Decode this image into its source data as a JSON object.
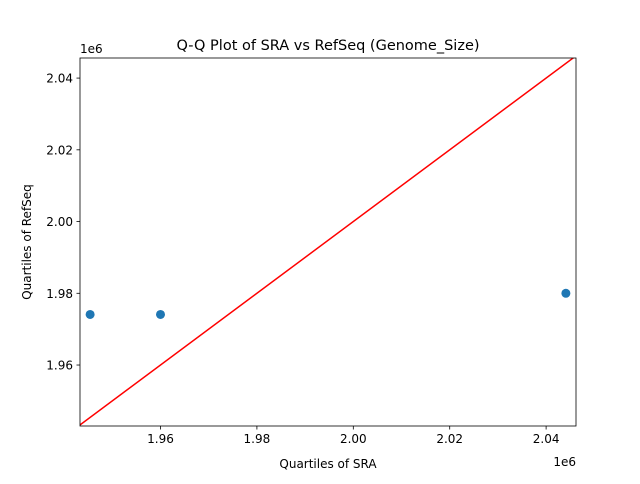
{
  "chart_data": {
    "type": "scatter",
    "title": "Q-Q Plot of SRA vs RefSeq (Genome_Size)",
    "xlabel": "Quartiles of SRA",
    "ylabel": "Quartiles of RefSeq",
    "x_offset_label": "1e6",
    "y_offset_label": "1e6",
    "xlim": [
      1.9433,
      2.0462
    ],
    "ylim": [
      1.943,
      2.0456
    ],
    "xticks": [
      1.96,
      1.98,
      2.0,
      2.02,
      2.04
    ],
    "yticks": [
      1.96,
      1.98,
      2.0,
      2.02,
      2.04
    ],
    "xtick_labels": [
      "1.96",
      "1.98",
      "2.00",
      "2.02",
      "2.04"
    ],
    "ytick_labels": [
      "1.96",
      "1.98",
      "2.00",
      "2.02",
      "2.04"
    ],
    "points": [
      {
        "x": 1.9454,
        "y": 1.9741
      },
      {
        "x": 1.96,
        "y": 1.9741
      },
      {
        "x": 2.0441,
        "y": 1.98
      }
    ],
    "reference_line": "y = x",
    "grid": false,
    "colors": {
      "points": "#1f77b4",
      "line": "#ff0000"
    }
  }
}
